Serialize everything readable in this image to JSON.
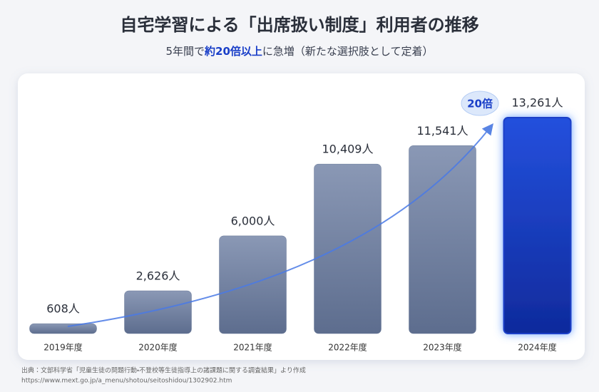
{
  "chart_data": {
    "type": "bar",
    "title": "自宅学習による「出席扱い制度」利用者の推移",
    "subtitle": [
      "5年間で",
      "約20倍以上",
      "に急増（新たな選択肢として定着）"
    ],
    "categories": [
      "2019年度",
      "2020年度",
      "2021年度",
      "2022年度",
      "2023年度",
      "2024年度"
    ],
    "values": [
      608,
      2626,
      6000,
      10409,
      11541,
      13261
    ],
    "value_labels": [
      "608人",
      "2,626人",
      "6,000人",
      "10,409人",
      "11,541人",
      "13,261人"
    ],
    "color": "#6b7b99",
    "highlight_color": "#1a3fc8",
    "annotation": "20倍",
    "source": [
      "出典：文部科学省「児童生徒の問題行動・不登校等生徒指導上の諸課題に関する調査結果」より作成",
      "https://www.mext.go.jp/a_menu/shotou/seitoshidou/1302902.htm"
    ]
  }
}
